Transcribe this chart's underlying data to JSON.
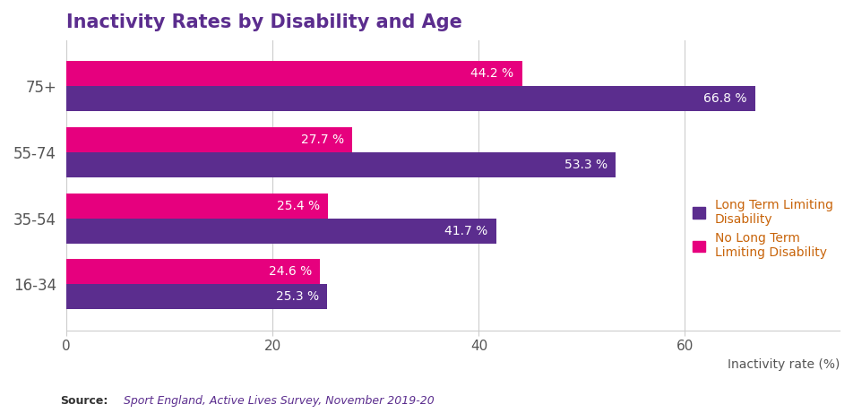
{
  "title": "Inactivity Rates by Disability and Age",
  "age_groups": [
    "16-34",
    "35-54",
    "55-74",
    "75+"
  ],
  "ltld_values": [
    25.3,
    41.7,
    53.3,
    66.8
  ],
  "nltld_values": [
    24.6,
    25.4,
    27.7,
    44.2
  ],
  "ltld_color": "#5b2d8e",
  "nltld_color": "#e6007e",
  "ltld_label": "Long Term Limiting\nDisability",
  "nltld_label": "No Long Term\nLimiting Disability",
  "xlabel": "Inactivity rate (%)",
  "xlim": [
    0,
    75
  ],
  "xticks": [
    0,
    20,
    40,
    60
  ],
  "bar_height": 0.38,
  "label_fontsize": 10,
  "title_fontsize": 15,
  "source_text": "Sport England, Active Lives Survey, November 2019-20",
  "background_color": "#ffffff",
  "text_color_white": "#ffffff",
  "title_color": "#5b2d8e",
  "legend_text_color": "#c8640a",
  "yticklabel_color": "#555555",
  "xticklabel_color": "#555555",
  "xlabel_color": "#555555",
  "source_bold_color": "#333333",
  "source_italic_color": "#5b2d8e"
}
